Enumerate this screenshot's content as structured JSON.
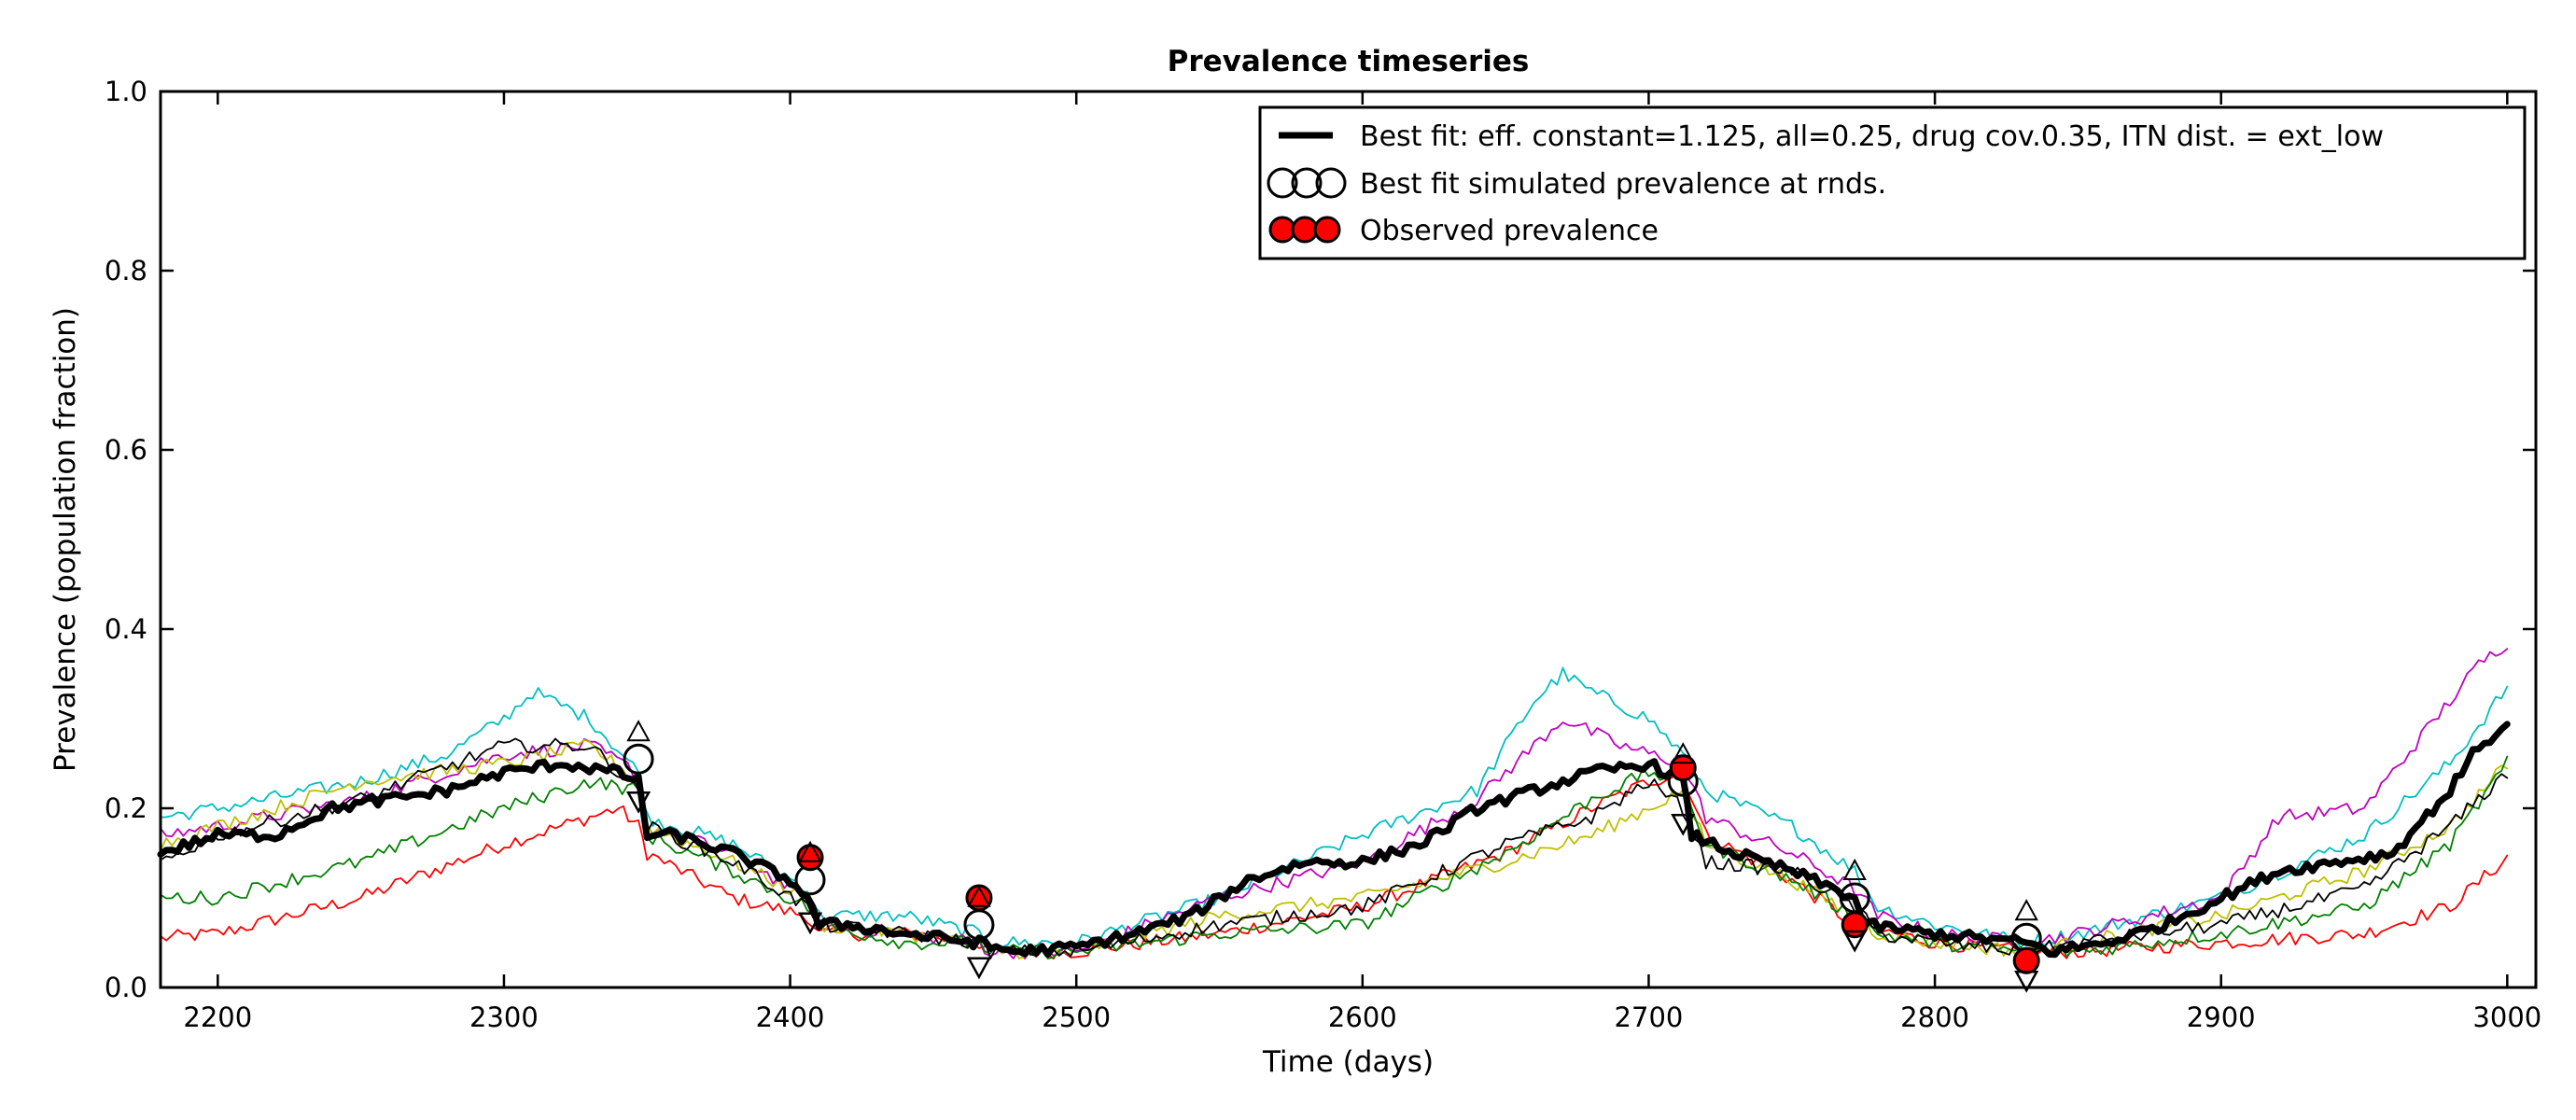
{
  "chart_data": {
    "type": "line",
    "title": "Prevalence timeseries",
    "xlabel": "Time (days)",
    "ylabel": "Prevalence (population fraction)",
    "xlim": [
      2180,
      3010
    ],
    "ylim": [
      0.0,
      1.0
    ],
    "x_ticks": [
      2200,
      2300,
      2400,
      2500,
      2600,
      2700,
      2800,
      2900,
      3000
    ],
    "x_tick_labels": [
      "2200",
      "2300",
      "2400",
      "2500",
      "2600",
      "2700",
      "2800",
      "2900",
      "3000"
    ],
    "y_ticks": [
      0.0,
      0.2,
      0.4,
      0.6,
      0.8,
      1.0
    ],
    "y_tick_labels": [
      "0.0",
      "0.2",
      "0.4",
      "0.6",
      "0.8",
      "1.0"
    ],
    "grid": false,
    "legend_position": "top-right",
    "legend": [
      {
        "label": "Best fit: eff. constant=1.125, all=0.25, drug cov.0.35, ITN dist. = ext_low",
        "marker": "thick-line"
      },
      {
        "label": "Best fit simulated prevalence at rnds.",
        "marker": "open-circle"
      },
      {
        "label": "Observed prevalence",
        "marker": "red-circle"
      }
    ],
    "round_days": [
      2347,
      2407,
      2466,
      2712,
      2772,
      2832
    ],
    "series": [
      {
        "color": "#ff0000",
        "width": "thin",
        "points": [
          [
            2180,
            0.055
          ],
          [
            2200,
            0.06
          ],
          [
            2250,
            0.1
          ],
          [
            2300,
            0.16
          ],
          [
            2330,
            0.19
          ],
          [
            2340,
            0.2
          ],
          [
            2347,
            0.18
          ],
          [
            2350,
            0.15
          ],
          [
            2380,
            0.1
          ],
          [
            2406,
            0.08
          ],
          [
            2410,
            0.06
          ],
          [
            2440,
            0.06
          ],
          [
            2466,
            0.05
          ],
          [
            2470,
            0.04
          ],
          [
            2500,
            0.04
          ],
          [
            2550,
            0.06
          ],
          [
            2600,
            0.09
          ],
          [
            2650,
            0.15
          ],
          [
            2680,
            0.2
          ],
          [
            2700,
            0.23
          ],
          [
            2712,
            0.24
          ],
          [
            2720,
            0.17
          ],
          [
            2750,
            0.12
          ],
          [
            2772,
            0.07
          ],
          [
            2800,
            0.05
          ],
          [
            2832,
            0.04
          ],
          [
            2850,
            0.04
          ],
          [
            2900,
            0.05
          ],
          [
            2950,
            0.06
          ],
          [
            2980,
            0.09
          ],
          [
            3000,
            0.145
          ]
        ]
      },
      {
        "color": "#00bfbf",
        "width": "thin",
        "points": [
          [
            2180,
            0.19
          ],
          [
            2200,
            0.2
          ],
          [
            2250,
            0.23
          ],
          [
            2280,
            0.26
          ],
          [
            2300,
            0.3
          ],
          [
            2310,
            0.33
          ],
          [
            2330,
            0.3
          ],
          [
            2347,
            0.24
          ],
          [
            2350,
            0.19
          ],
          [
            2380,
            0.16
          ],
          [
            2406,
            0.11
          ],
          [
            2410,
            0.08
          ],
          [
            2440,
            0.08
          ],
          [
            2466,
            0.06
          ],
          [
            2470,
            0.05
          ],
          [
            2500,
            0.05
          ],
          [
            2550,
            0.1
          ],
          [
            2600,
            0.17
          ],
          [
            2640,
            0.22
          ],
          [
            2660,
            0.32
          ],
          [
            2670,
            0.35
          ],
          [
            2680,
            0.33
          ],
          [
            2700,
            0.3
          ],
          [
            2712,
            0.26
          ],
          [
            2720,
            0.22
          ],
          [
            2750,
            0.18
          ],
          [
            2772,
            0.13
          ],
          [
            2780,
            0.09
          ],
          [
            2800,
            0.07
          ],
          [
            2832,
            0.05
          ],
          [
            2850,
            0.06
          ],
          [
            2900,
            0.1
          ],
          [
            2950,
            0.17
          ],
          [
            2980,
            0.25
          ],
          [
            3000,
            0.335
          ]
        ]
      },
      {
        "color": "#bf00bf",
        "width": "thin",
        "points": [
          [
            2180,
            0.17
          ],
          [
            2200,
            0.18
          ],
          [
            2250,
            0.21
          ],
          [
            2300,
            0.26
          ],
          [
            2330,
            0.27
          ],
          [
            2347,
            0.24
          ],
          [
            2350,
            0.18
          ],
          [
            2380,
            0.15
          ],
          [
            2406,
            0.1
          ],
          [
            2410,
            0.07
          ],
          [
            2440,
            0.06
          ],
          [
            2466,
            0.05
          ],
          [
            2470,
            0.04
          ],
          [
            2500,
            0.04
          ],
          [
            2550,
            0.1
          ],
          [
            2600,
            0.14
          ],
          [
            2640,
            0.21
          ],
          [
            2660,
            0.27
          ],
          [
            2670,
            0.3
          ],
          [
            2690,
            0.27
          ],
          [
            2712,
            0.25
          ],
          [
            2720,
            0.19
          ],
          [
            2750,
            0.15
          ],
          [
            2772,
            0.11
          ],
          [
            2780,
            0.08
          ],
          [
            2800,
            0.06
          ],
          [
            2832,
            0.05
          ],
          [
            2850,
            0.06
          ],
          [
            2900,
            0.1
          ],
          [
            2920,
            0.19
          ],
          [
            2950,
            0.2
          ],
          [
            2970,
            0.28
          ],
          [
            2990,
            0.36
          ],
          [
            3000,
            0.385
          ]
        ]
      },
      {
        "color": "#bfbf00",
        "width": "thin",
        "points": [
          [
            2180,
            0.16
          ],
          [
            2200,
            0.18
          ],
          [
            2250,
            0.23
          ],
          [
            2300,
            0.25
          ],
          [
            2330,
            0.27
          ],
          [
            2347,
            0.23
          ],
          [
            2350,
            0.18
          ],
          [
            2380,
            0.14
          ],
          [
            2406,
            0.1
          ],
          [
            2410,
            0.07
          ],
          [
            2440,
            0.06
          ],
          [
            2466,
            0.05
          ],
          [
            2470,
            0.04
          ],
          [
            2500,
            0.04
          ],
          [
            2550,
            0.08
          ],
          [
            2600,
            0.1
          ],
          [
            2650,
            0.14
          ],
          [
            2680,
            0.17
          ],
          [
            2700,
            0.2
          ],
          [
            2712,
            0.22
          ],
          [
            2720,
            0.16
          ],
          [
            2750,
            0.12
          ],
          [
            2772,
            0.08
          ],
          [
            2780,
            0.06
          ],
          [
            2800,
            0.05
          ],
          [
            2832,
            0.04
          ],
          [
            2850,
            0.05
          ],
          [
            2900,
            0.08
          ],
          [
            2950,
            0.13
          ],
          [
            2980,
            0.18
          ],
          [
            3000,
            0.25
          ]
        ]
      },
      {
        "color": "#008000",
        "width": "thin",
        "points": [
          [
            2180,
            0.1
          ],
          [
            2200,
            0.1
          ],
          [
            2250,
            0.14
          ],
          [
            2300,
            0.2
          ],
          [
            2330,
            0.23
          ],
          [
            2347,
            0.22
          ],
          [
            2350,
            0.17
          ],
          [
            2380,
            0.13
          ],
          [
            2406,
            0.09
          ],
          [
            2410,
            0.07
          ],
          [
            2440,
            0.05
          ],
          [
            2466,
            0.05
          ],
          [
            2470,
            0.04
          ],
          [
            2500,
            0.04
          ],
          [
            2550,
            0.06
          ],
          [
            2600,
            0.07
          ],
          [
            2650,
            0.15
          ],
          [
            2680,
            0.21
          ],
          [
            2700,
            0.24
          ],
          [
            2712,
            0.23
          ],
          [
            2720,
            0.16
          ],
          [
            2750,
            0.12
          ],
          [
            2772,
            0.08
          ],
          [
            2780,
            0.06
          ],
          [
            2800,
            0.05
          ],
          [
            2832,
            0.04
          ],
          [
            2850,
            0.04
          ],
          [
            2900,
            0.06
          ],
          [
            2950,
            0.09
          ],
          [
            2980,
            0.16
          ],
          [
            3000,
            0.25
          ]
        ]
      },
      {
        "color": "#000000",
        "width": "thin",
        "points": [
          [
            2180,
            0.14
          ],
          [
            2200,
            0.17
          ],
          [
            2250,
            0.21
          ],
          [
            2300,
            0.27
          ],
          [
            2330,
            0.27
          ],
          [
            2347,
            0.22
          ],
          [
            2350,
            0.18
          ],
          [
            2380,
            0.14
          ],
          [
            2406,
            0.09
          ],
          [
            2410,
            0.07
          ],
          [
            2440,
            0.06
          ],
          [
            2466,
            0.05
          ],
          [
            2470,
            0.04
          ],
          [
            2500,
            0.04
          ],
          [
            2550,
            0.07
          ],
          [
            2600,
            0.09
          ],
          [
            2650,
            0.16
          ],
          [
            2680,
            0.19
          ],
          [
            2700,
            0.23
          ],
          [
            2712,
            0.2
          ],
          [
            2720,
            0.14
          ],
          [
            2750,
            0.13
          ],
          [
            2772,
            0.09
          ],
          [
            2780,
            0.06
          ],
          [
            2800,
            0.05
          ],
          [
            2832,
            0.04
          ],
          [
            2850,
            0.05
          ],
          [
            2900,
            0.07
          ],
          [
            2950,
            0.11
          ],
          [
            2980,
            0.18
          ],
          [
            3000,
            0.24
          ]
        ]
      },
      {
        "color": "#000000",
        "width": "thick",
        "best_fit": true,
        "points": [
          [
            2180,
            0.15
          ],
          [
            2200,
            0.17
          ],
          [
            2220,
            0.17
          ],
          [
            2240,
            0.2
          ],
          [
            2260,
            0.21
          ],
          [
            2280,
            0.22
          ],
          [
            2300,
            0.24
          ],
          [
            2320,
            0.25
          ],
          [
            2340,
            0.24
          ],
          [
            2347,
            0.23
          ],
          [
            2350,
            0.17
          ],
          [
            2360,
            0.17
          ],
          [
            2380,
            0.15
          ],
          [
            2400,
            0.12
          ],
          [
            2406,
            0.1
          ],
          [
            2410,
            0.07
          ],
          [
            2420,
            0.07
          ],
          [
            2440,
            0.06
          ],
          [
            2466,
            0.05
          ],
          [
            2470,
            0.045
          ],
          [
            2480,
            0.04
          ],
          [
            2500,
            0.045
          ],
          [
            2520,
            0.06
          ],
          [
            2540,
            0.08
          ],
          [
            2560,
            0.12
          ],
          [
            2580,
            0.14
          ],
          [
            2600,
            0.14
          ],
          [
            2620,
            0.16
          ],
          [
            2640,
            0.2
          ],
          [
            2660,
            0.22
          ],
          [
            2680,
            0.24
          ],
          [
            2700,
            0.25
          ],
          [
            2712,
            0.23
          ],
          [
            2715,
            0.17
          ],
          [
            2730,
            0.15
          ],
          [
            2750,
            0.13
          ],
          [
            2772,
            0.1
          ],
          [
            2775,
            0.07
          ],
          [
            2800,
            0.06
          ],
          [
            2832,
            0.05
          ],
          [
            2840,
            0.04
          ],
          [
            2860,
            0.05
          ],
          [
            2880,
            0.07
          ],
          [
            2900,
            0.1
          ],
          [
            2920,
            0.13
          ],
          [
            2940,
            0.14
          ],
          [
            2960,
            0.15
          ],
          [
            2980,
            0.22
          ],
          [
            2990,
            0.27
          ],
          [
            3000,
            0.29
          ]
        ]
      }
    ],
    "simulated_at_rounds": [
      {
        "x": 2347,
        "y": 0.255
      },
      {
        "x": 2407,
        "y": 0.12
      },
      {
        "x": 2466,
        "y": 0.07
      },
      {
        "x": 2712,
        "y": 0.23
      },
      {
        "x": 2772,
        "y": 0.1
      },
      {
        "x": 2832,
        "y": 0.055
      }
    ],
    "observed": [
      {
        "x": 2407,
        "y": 0.145
      },
      {
        "x": 2466,
        "y": 0.1
      },
      {
        "x": 2712,
        "y": 0.245
      },
      {
        "x": 2772,
        "y": 0.07
      },
      {
        "x": 2832,
        "y": 0.03
      }
    ]
  }
}
